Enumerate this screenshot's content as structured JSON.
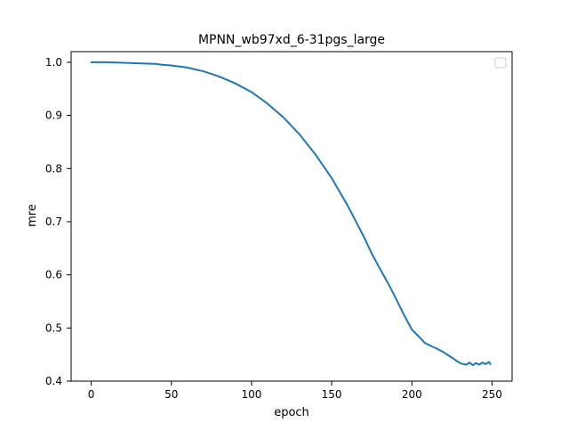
{
  "chart_data": {
    "type": "line",
    "title": "MPNN_wb97xd_6-31pgs_large",
    "xlabel": "epoch",
    "ylabel": "mre",
    "xlim": [
      -12.5,
      262.5
    ],
    "ylim": [
      0.4,
      1.02
    ],
    "x_ticks": [
      0,
      50,
      100,
      150,
      200,
      250
    ],
    "y_ticks": [
      0.4,
      0.5,
      0.6,
      0.7,
      0.8,
      0.9,
      1.0
    ],
    "x_tick_labels": [
      "0",
      "50",
      "100",
      "150",
      "200",
      "250"
    ],
    "y_tick_labels": [
      "0.4",
      "0.5",
      "0.6",
      "0.7",
      "0.8",
      "0.9",
      "1.0"
    ],
    "grid": false,
    "legend": {
      "position": "top-right",
      "entries": []
    },
    "series": [
      {
        "color": "#1f77b4",
        "x": [
          0,
          10,
          20,
          30,
          40,
          45,
          50,
          60,
          70,
          80,
          90,
          100,
          110,
          120,
          130,
          140,
          150,
          160,
          170,
          175,
          178,
          180,
          185,
          190,
          195,
          200,
          205,
          208,
          212,
          215,
          220,
          225,
          228,
          230,
          232,
          234,
          236,
          238,
          240,
          242,
          244,
          246,
          248,
          249
        ],
        "y": [
          1.0,
          1.0,
          0.999,
          0.998,
          0.997,
          0.995,
          0.994,
          0.99,
          0.983,
          0.973,
          0.96,
          0.944,
          0.922,
          0.896,
          0.864,
          0.826,
          0.782,
          0.73,
          0.672,
          0.64,
          0.623,
          0.612,
          0.585,
          0.556,
          0.525,
          0.497,
          0.482,
          0.472,
          0.466,
          0.462,
          0.454,
          0.444,
          0.438,
          0.434,
          0.432,
          0.431,
          0.435,
          0.43,
          0.434,
          0.431,
          0.435,
          0.432,
          0.436,
          0.432
        ]
      }
    ]
  }
}
